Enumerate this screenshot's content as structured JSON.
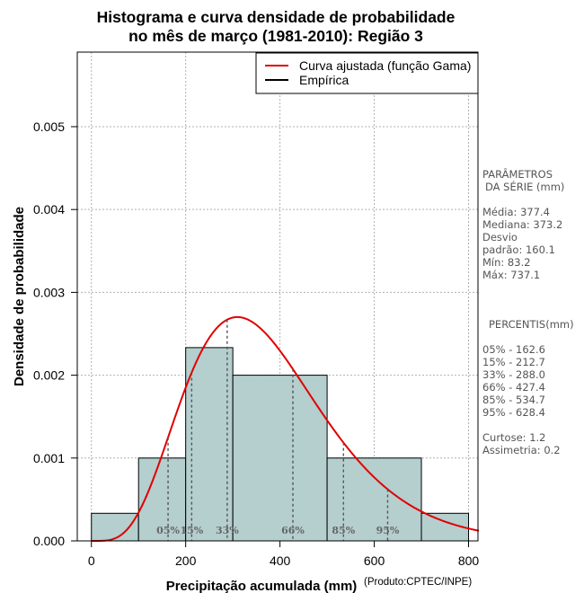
{
  "chart_data": {
    "type": "bar",
    "title": "Histograma e curva densidade de probabilidade\nno mês de março (1981-2010): Região 3",
    "title_lines": [
      "Histograma e curva densidade de probabilidade",
      "no mês de março (1981-2010): Região 3"
    ],
    "xlabel": "Precipitação acumulada (mm)",
    "source_note": "(Produto:CPTEC/INPE)",
    "ylabel": "Densidade de probabilidade",
    "xlim": [
      -30,
      820
    ],
    "ylim": [
      0,
      0.0059
    ],
    "x_ticks": [
      0,
      200,
      400,
      600,
      800
    ],
    "y_ticks": [
      0.0,
      0.001,
      0.002,
      0.003,
      0.004,
      0.005
    ],
    "y_tick_labels": [
      "0.000",
      "0.001",
      "0.002",
      "0.003",
      "0.004",
      "0.005"
    ],
    "grid": true,
    "legend": {
      "position": "top-right",
      "entries": [
        {
          "label": "Curva ajustada (função Gama)",
          "color": "#e00000"
        },
        {
          "label": "Empírica",
          "color": "#000000"
        }
      ]
    },
    "histogram": {
      "bin_edges": [
        0,
        100,
        200,
        300,
        500,
        700,
        800
      ],
      "density": [
        0.000333,
        0.001,
        0.002333,
        0.002,
        0.001,
        0.000333
      ],
      "fill_color": "#b5cece"
    },
    "gamma_curve": {
      "shape": 5.56,
      "scale": 67.9,
      "x_range": [
        0,
        830
      ],
      "color": "#e00000"
    },
    "percentile_lines": [
      {
        "label": "05%",
        "x": 162.6
      },
      {
        "label": "15%",
        "x": 212.7
      },
      {
        "label": "33%",
        "x": 288.0
      },
      {
        "label": "66%",
        "x": 427.4
      },
      {
        "label": "85%",
        "x": 534.7
      },
      {
        "label": "95%",
        "x": 628.4
      }
    ]
  },
  "side_panel": {
    "params_title_1": "PARÂMETROS",
    "params_title_2": "DA SÉRIE (mm)",
    "media": "Média:  377.4",
    "mediana": "Mediana:  373.2",
    "desvio_1": "Desvio",
    "desvio_2": "padrão:  160.1",
    "min": "Mín:  83.2",
    "max": "Máx:  737.1",
    "percentis_title": "PERCENTIS(mm)",
    "p05": "05% -  162.6",
    "p15": "15% -  212.7",
    "p33": "33% -  288.0",
    "p66": "66% -  427.4",
    "p85": "85% -  534.7",
    "p95": "95% -  628.4",
    "curtose": "Curtose:  1.2",
    "assimetria": "Assimetria:  0.2"
  }
}
